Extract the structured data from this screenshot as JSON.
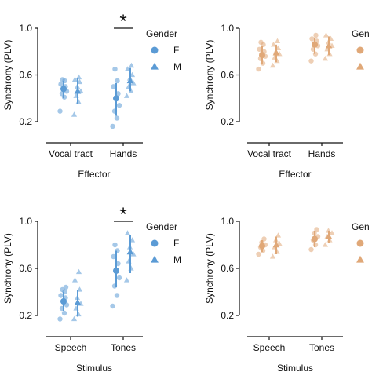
{
  "colors": {
    "blue": "#5b9bd5",
    "orange": "#e0a878",
    "axis": "#111111"
  },
  "chart_data": [
    {
      "type": "scatter",
      "panel": "top-left",
      "ylabel": "Synchrony (PLV)",
      "xlabel": "Effector",
      "categories": [
        "Vocal tract",
        "Hands"
      ],
      "ylim": [
        0.1,
        1.0
      ],
      "yticks": [
        0.2,
        0.6,
        1.0
      ],
      "ytick_labels": [
        "0.2",
        "0.6",
        "1.0"
      ],
      "color": "blue",
      "significance": "*",
      "legend": {
        "title": "Gender",
        "entries": [
          {
            "label": "F",
            "marker": "circle"
          },
          {
            "label": "M",
            "marker": "triangle"
          }
        ],
        "placement": "right"
      },
      "series": [
        {
          "name": "F",
          "marker": "circle",
          "groups": [
            {
              "category": "Vocal tract",
              "values": [
                0.29,
                0.41,
                0.44,
                0.46,
                0.48,
                0.5,
                0.52,
                0.55,
                0.56
              ],
              "mean": 0.48,
              "err": [
                0.4,
                0.55
              ]
            },
            {
              "category": "Hands",
              "values": [
                0.16,
                0.23,
                0.29,
                0.34,
                0.4,
                0.44,
                0.5,
                0.55,
                0.65
              ],
              "mean": 0.4,
              "err": [
                0.25,
                0.53
              ]
            }
          ]
        },
        {
          "name": "M",
          "marker": "triangle",
          "groups": [
            {
              "category": "Vocal tract",
              "values": [
                0.26,
                0.37,
                0.42,
                0.46,
                0.5,
                0.54,
                0.56,
                0.58
              ],
              "mean": 0.46,
              "err": [
                0.35,
                0.57
              ]
            },
            {
              "category": "Hands",
              "values": [
                0.42,
                0.46,
                0.5,
                0.53,
                0.57,
                0.6,
                0.65,
                0.68
              ],
              "mean": 0.55,
              "err": [
                0.46,
                0.66
              ]
            }
          ]
        }
      ]
    },
    {
      "type": "scatter",
      "panel": "top-right",
      "ylabel": "Synchrony (PLV)",
      "xlabel": "Effector",
      "categories": [
        "Vocal tract",
        "Hands"
      ],
      "ylim": [
        0.1,
        1.0
      ],
      "yticks": [
        0.2,
        0.6,
        1.0
      ],
      "ytick_labels": [
        "0.2",
        "0.6",
        "1.0"
      ],
      "color": "orange",
      "legend": {
        "title": "Gen",
        "entries": [
          {
            "label": "",
            "marker": "circle"
          },
          {
            "label": "",
            "marker": "triangle"
          }
        ],
        "placement": "right (cropped)"
      },
      "series": [
        {
          "name": "",
          "marker": "circle",
          "groups": [
            {
              "category": "Vocal tract",
              "values": [
                0.65,
                0.7,
                0.74,
                0.76,
                0.78,
                0.8,
                0.82,
                0.86,
                0.88
              ],
              "mean": 0.77,
              "err": [
                0.69,
                0.85
              ]
            },
            {
              "category": "Hands",
              "values": [
                0.72,
                0.78,
                0.82,
                0.85,
                0.87,
                0.89,
                0.91,
                0.94
              ],
              "mean": 0.86,
              "err": [
                0.78,
                0.92
              ]
            }
          ]
        },
        {
          "name": "",
          "marker": "triangle",
          "groups": [
            {
              "category": "Vocal tract",
              "values": [
                0.68,
                0.72,
                0.75,
                0.78,
                0.8,
                0.83,
                0.86,
                0.89
              ],
              "mean": 0.79,
              "err": [
                0.71,
                0.86
              ]
            },
            {
              "category": "Hands",
              "values": [
                0.74,
                0.78,
                0.82,
                0.85,
                0.88,
                0.91,
                0.94
              ],
              "mean": 0.85,
              "err": [
                0.77,
                0.93
              ]
            }
          ]
        }
      ]
    },
    {
      "type": "scatter",
      "panel": "bottom-left",
      "ylabel": "Synchrony (PLV)",
      "xlabel": "Stimulus",
      "categories": [
        "Speech",
        "Tones"
      ],
      "ylim": [
        0.1,
        1.0
      ],
      "yticks": [
        0.2,
        0.6,
        1.0
      ],
      "ytick_labels": [
        "0.2",
        "0.6",
        "1.0"
      ],
      "color": "blue",
      "significance": "*",
      "legend": {
        "title": "Gender",
        "entries": [
          {
            "label": "F",
            "marker": "circle"
          },
          {
            "label": "M",
            "marker": "triangle"
          }
        ],
        "placement": "right"
      },
      "series": [
        {
          "name": "F",
          "marker": "circle",
          "groups": [
            {
              "category": "Speech",
              "values": [
                0.17,
                0.22,
                0.26,
                0.29,
                0.32,
                0.35,
                0.37,
                0.4,
                0.42,
                0.44
              ],
              "mean": 0.32,
              "err": [
                0.24,
                0.4
              ]
            },
            {
              "category": "Tones",
              "values": [
                0.28,
                0.37,
                0.45,
                0.52,
                0.58,
                0.64,
                0.7,
                0.75,
                0.8
              ],
              "mean": 0.58,
              "err": [
                0.44,
                0.75
              ]
            }
          ]
        },
        {
          "name": "M",
          "marker": "triangle",
          "groups": [
            {
              "category": "Speech",
              "values": [
                0.17,
                0.21,
                0.26,
                0.3,
                0.35,
                0.42,
                0.5,
                0.57
              ],
              "mean": 0.31,
              "err": [
                0.19,
                0.42
              ]
            },
            {
              "category": "Tones",
              "values": [
                0.5,
                0.6,
                0.66,
                0.72,
                0.78,
                0.84,
                0.9
              ],
              "mean": 0.74,
              "err": [
                0.56,
                0.88
              ]
            }
          ]
        }
      ]
    },
    {
      "type": "scatter",
      "panel": "bottom-right",
      "ylabel": "Synchrony (PLV)",
      "xlabel": "Stimulus",
      "categories": [
        "Speech",
        "Tones"
      ],
      "ylim": [
        0.1,
        1.0
      ],
      "yticks": [
        0.2,
        0.6,
        1.0
      ],
      "ytick_labels": [
        "0.2",
        "0.6",
        "1.0"
      ],
      "color": "orange",
      "legend": {
        "title": "Gen",
        "entries": [
          {
            "label": "",
            "marker": "circle"
          },
          {
            "label": "",
            "marker": "triangle"
          }
        ],
        "placement": "right (cropped)"
      },
      "series": [
        {
          "name": "",
          "marker": "circle",
          "groups": [
            {
              "category": "Speech",
              "values": [
                0.72,
                0.75,
                0.78,
                0.8,
                0.82,
                0.85
              ],
              "mean": 0.79,
              "err": [
                0.74,
                0.84
              ]
            },
            {
              "category": "Tones",
              "values": [
                0.76,
                0.8,
                0.84,
                0.87,
                0.9,
                0.93
              ],
              "mean": 0.85,
              "err": [
                0.78,
                0.92
              ]
            }
          ]
        },
        {
          "name": "",
          "marker": "triangle",
          "groups": [
            {
              "category": "Speech",
              "values": [
                0.7,
                0.74,
                0.78,
                0.81,
                0.84,
                0.88
              ],
              "mean": 0.8,
              "err": [
                0.72,
                0.87
              ]
            },
            {
              "category": "Tones",
              "values": [
                0.8,
                0.84,
                0.87,
                0.9,
                0.92
              ],
              "mean": 0.87,
              "err": [
                0.82,
                0.92
              ]
            }
          ]
        }
      ]
    }
  ]
}
